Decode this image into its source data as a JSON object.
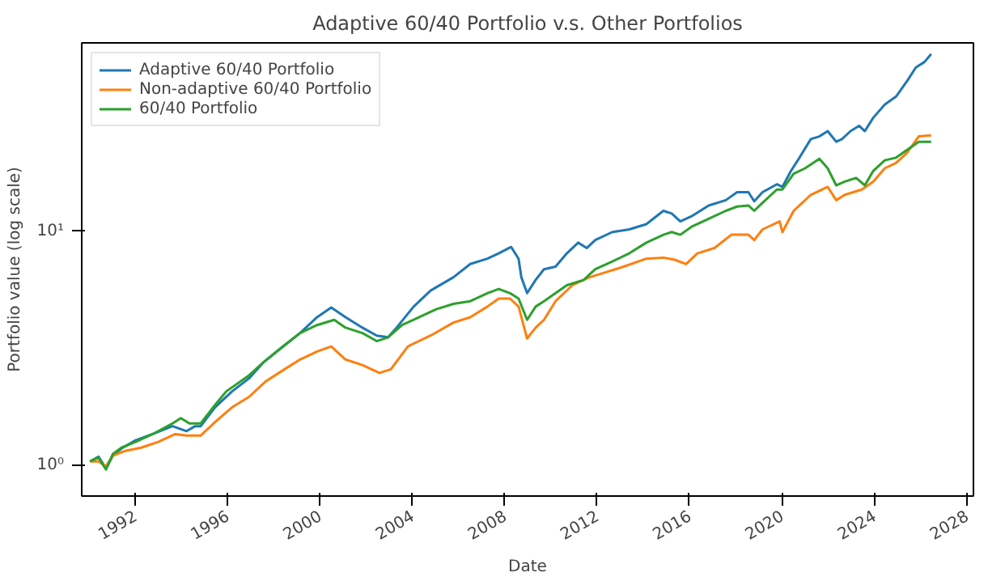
{
  "chart_data": {
    "type": "line",
    "title": "Adaptive 60/40 Portfolio v.s. Other Portfolios",
    "xlabel": "Date",
    "ylabel": "Portfolio value (log scale)",
    "log": "y",
    "grid": false,
    "legend": "top left",
    "marker": "none",
    "line_style": "solid",
    "xlim": [
      1989.7,
      2028.3
    ],
    "xticks": [
      1992,
      1996,
      2000,
      2004,
      2008,
      2012,
      2016,
      2020,
      2024,
      2028
    ],
    "ylim": [
      0.74,
      63.5
    ],
    "yticks": [
      {
        "value": 1,
        "label": "10⁰"
      },
      {
        "value": 10,
        "label": "10¹"
      }
    ],
    "series": [
      {
        "name": "Adaptive 60/40 Portfolio",
        "color": "#1f77b4",
        "x": [
          1990.06,
          1990.43,
          1990.75,
          1991.05,
          1991.42,
          1992.03,
          1992.77,
          1993.63,
          1994.24,
          1994.61,
          1994.85,
          1995.47,
          1996.21,
          1996.94,
          1997.56,
          1998.42,
          1999.15,
          1999.89,
          2000.5,
          2001.12,
          2001.85,
          2002.47,
          2002.96,
          2003.33,
          2004.07,
          2004.8,
          2005.79,
          2006.52,
          2007.26,
          2007.75,
          2008.29,
          2008.61,
          2008.73,
          2008.98,
          2009.35,
          2009.71,
          2010.21,
          2010.7,
          2011.19,
          2011.56,
          2011.93,
          2012.67,
          2013.4,
          2014.14,
          2014.88,
          2015.24,
          2015.61,
          2016.1,
          2016.84,
          2017.58,
          2018.07,
          2018.56,
          2018.81,
          2019.17,
          2019.79,
          2020.03,
          2020.4,
          2020.77,
          2021.26,
          2021.63,
          2021.99,
          2022.36,
          2022.61,
          2022.98,
          2023.35,
          2023.6,
          2023.96,
          2024.46,
          2024.95,
          2025.44,
          2025.81,
          2026.18,
          2026.47
        ],
        "values": [
          1.04,
          1.09,
          0.97,
          1.1,
          1.18,
          1.28,
          1.36,
          1.47,
          1.4,
          1.47,
          1.47,
          1.77,
          2.07,
          2.35,
          2.75,
          3.22,
          3.67,
          4.29,
          4.72,
          4.29,
          3.87,
          3.58,
          3.52,
          3.87,
          4.76,
          5.57,
          6.35,
          7.23,
          7.62,
          8.03,
          8.55,
          7.62,
          6.35,
          5.43,
          6.19,
          6.87,
          7.05,
          8.03,
          8.92,
          8.46,
          9.15,
          9.9,
          10.16,
          10.7,
          12.2,
          11.88,
          10.99,
          11.57,
          12.85,
          13.54,
          14.64,
          14.64,
          13.4,
          14.64,
          15.83,
          15.43,
          18.04,
          20.56,
          24.68,
          25.33,
          26.69,
          24.04,
          24.68,
          26.69,
          28.12,
          26.69,
          30.41,
          34.65,
          37.47,
          43.83,
          49.94,
          52.62,
          56.9
        ]
      },
      {
        "name": "Non-adaptive 60/40 Portfolio",
        "color": "#ff7f0e",
        "x": [
          1990.06,
          1990.43,
          1990.75,
          1991.05,
          1991.54,
          1992.27,
          1993.01,
          1993.75,
          1994.24,
          1994.85,
          1995.47,
          1996.21,
          1996.94,
          1997.68,
          1998.42,
          1999.15,
          1999.89,
          2000.5,
          2001.12,
          2001.85,
          2002.59,
          2003.08,
          2003.82,
          2004.8,
          2005.79,
          2006.52,
          2007.26,
          2007.75,
          2008.24,
          2008.61,
          2008.98,
          2009.35,
          2009.71,
          2010.21,
          2010.94,
          2011.68,
          2012.42,
          2013.16,
          2014.14,
          2014.88,
          2015.37,
          2015.86,
          2016.35,
          2017.09,
          2017.82,
          2018.56,
          2018.81,
          2019.17,
          2019.91,
          2020.03,
          2020.52,
          2021.26,
          2021.99,
          2022.36,
          2022.73,
          2023.47,
          2023.96,
          2024.46,
          2024.95,
          2025.44,
          2025.93,
          2026.47
        ],
        "values": [
          1.04,
          1.04,
          0.99,
          1.1,
          1.15,
          1.19,
          1.26,
          1.36,
          1.34,
          1.34,
          1.53,
          1.77,
          1.96,
          2.29,
          2.55,
          2.83,
          3.06,
          3.22,
          2.83,
          2.68,
          2.48,
          2.57,
          3.22,
          3.58,
          4.07,
          4.29,
          4.76,
          5.15,
          5.15,
          4.76,
          3.48,
          3.87,
          4.18,
          5.02,
          5.87,
          6.35,
          6.69,
          7.05,
          7.62,
          7.7,
          7.54,
          7.23,
          8.03,
          8.46,
          9.64,
          9.64,
          9.15,
          10.16,
          10.99,
          9.9,
          12.2,
          14.27,
          15.43,
          13.54,
          14.27,
          15.03,
          16.25,
          18.52,
          19.51,
          21.66,
          25.33,
          25.6
        ]
      },
      {
        "name": "60/40 Portfolio",
        "color": "#2ca02c",
        "x": [
          1990.06,
          1990.43,
          1990.75,
          1991.05,
          1991.42,
          1992.03,
          1992.77,
          1993.63,
          1993.99,
          1994.36,
          1994.85,
          1995.47,
          1995.96,
          1996.94,
          1997.56,
          1998.42,
          1999.15,
          1999.89,
          2000.63,
          2001.12,
          2001.85,
          2002.47,
          2002.96,
          2003.57,
          2004.31,
          2005.05,
          2005.79,
          2006.52,
          2007.26,
          2007.75,
          2008.24,
          2008.61,
          2008.98,
          2009.35,
          2009.71,
          2010.21,
          2010.7,
          2011.43,
          2011.93,
          2012.67,
          2013.4,
          2014.14,
          2014.88,
          2015.24,
          2015.61,
          2016.1,
          2016.84,
          2017.58,
          2018.07,
          2018.56,
          2018.81,
          2019.17,
          2019.79,
          2020.03,
          2020.52,
          2021.01,
          2021.63,
          2021.99,
          2022.36,
          2022.73,
          2023.22,
          2023.6,
          2023.96,
          2024.46,
          2024.95,
          2025.44,
          2025.93,
          2026.47
        ],
        "values": [
          1.04,
          1.08,
          0.96,
          1.12,
          1.19,
          1.26,
          1.36,
          1.51,
          1.59,
          1.51,
          1.51,
          1.81,
          2.07,
          2.42,
          2.75,
          3.22,
          3.67,
          3.97,
          4.18,
          3.87,
          3.67,
          3.39,
          3.52,
          3.97,
          4.29,
          4.64,
          4.89,
          5.02,
          5.43,
          5.66,
          5.43,
          5.15,
          4.18,
          4.76,
          5.02,
          5.43,
          5.87,
          6.19,
          6.87,
          7.42,
          8.03,
          8.92,
          9.64,
          9.9,
          9.64,
          10.43,
          11.28,
          12.2,
          12.72,
          12.85,
          12.2,
          13.19,
          15.03,
          15.03,
          17.58,
          18.52,
          20.35,
          18.52,
          15.67,
          16.25,
          16.86,
          15.67,
          18.04,
          20.03,
          20.56,
          22.23,
          24.04,
          24.04
        ]
      }
    ]
  }
}
